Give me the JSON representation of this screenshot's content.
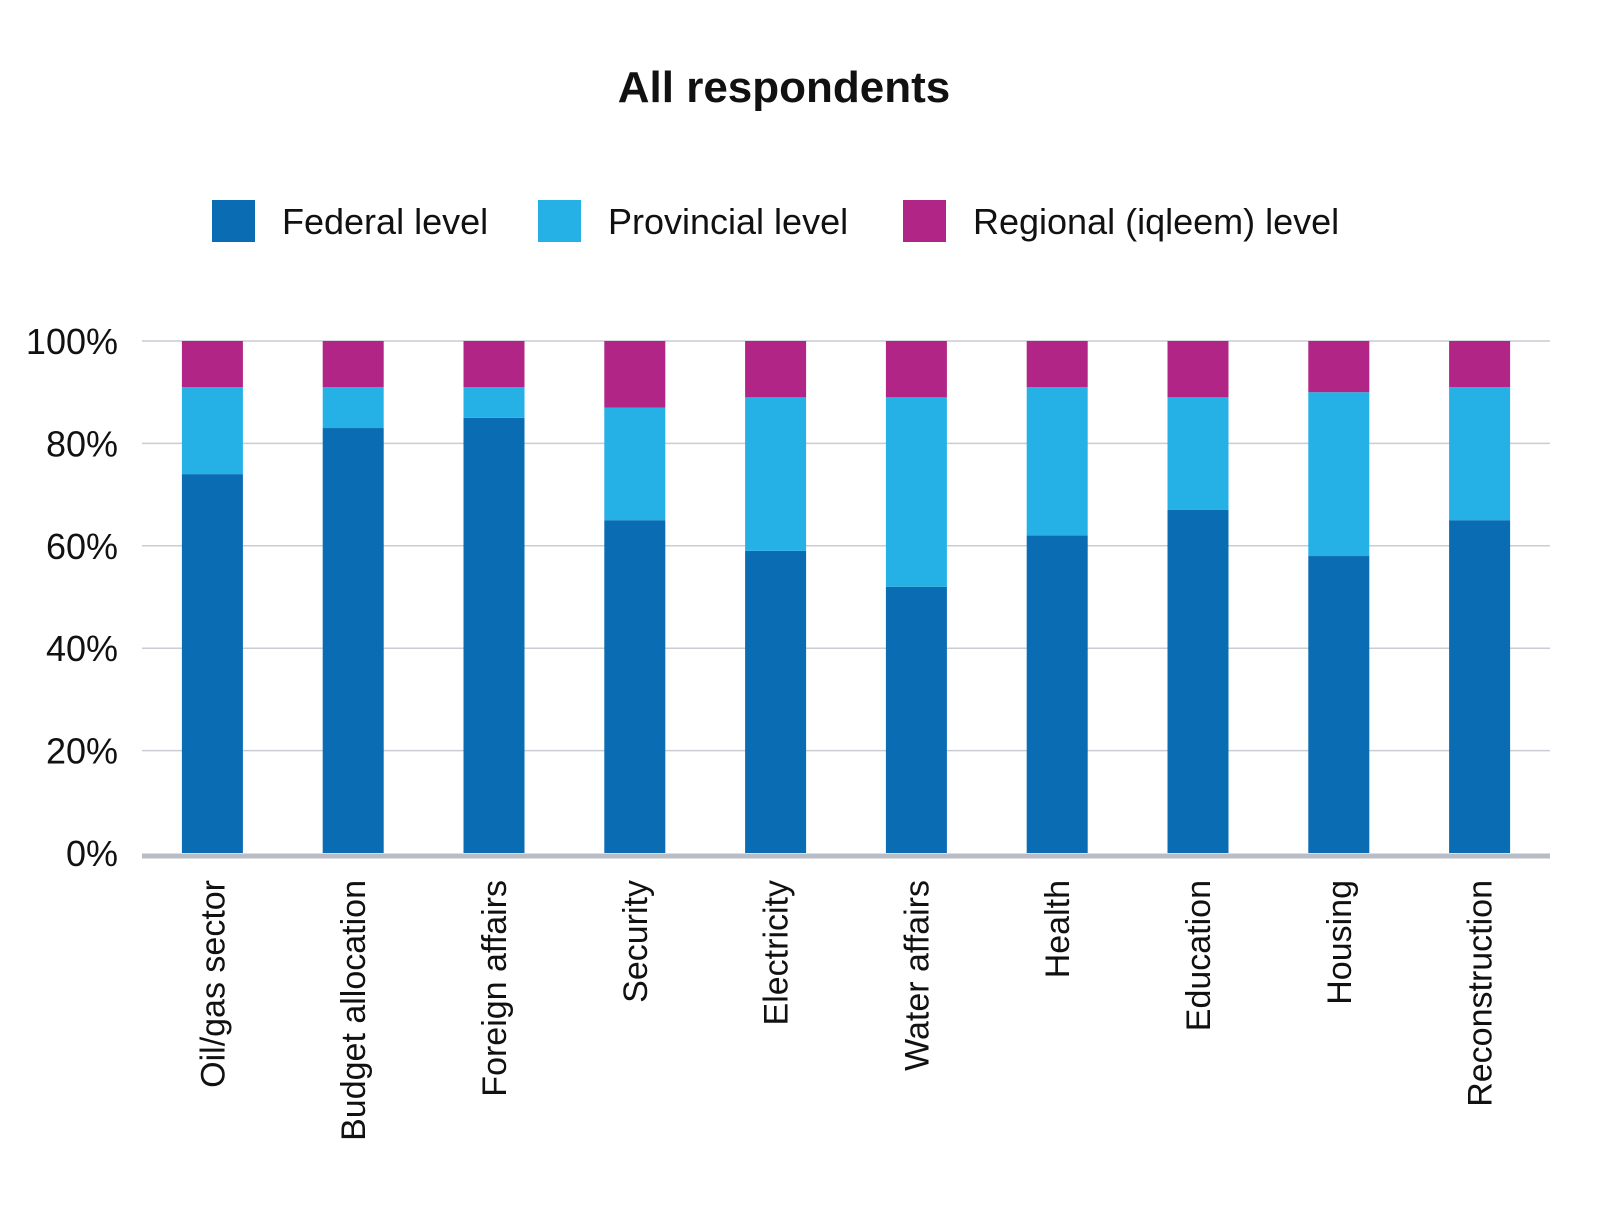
{
  "chart_data": {
    "type": "bar",
    "stacked": true,
    "title": "All respondents",
    "xlabel": "",
    "ylabel": "",
    "ylim": [
      0,
      100
    ],
    "yticks": [
      "0%",
      "20%",
      "40%",
      "60%",
      "80%",
      "100%"
    ],
    "grid": true,
    "legend_placement": "top",
    "categories": [
      "Oil/gas sector",
      "Budget allocation",
      "Foreign affairs",
      "Security",
      "Electricity",
      "Water affairs",
      "Health",
      "Education",
      "Housing",
      "Reconstruction"
    ],
    "series": [
      {
        "name": "Federal level",
        "color": "#0a6cb3",
        "values": [
          74,
          83,
          85,
          65,
          59,
          52,
          62,
          67,
          58,
          65
        ]
      },
      {
        "name": "Provincial level",
        "color": "#25b1e6",
        "values": [
          17,
          8,
          6,
          22,
          30,
          37,
          29,
          22,
          32,
          26
        ]
      },
      {
        "name": "Regional (iqleem) level",
        "color": "#b02585",
        "values": [
          9,
          9,
          9,
          13,
          11,
          11,
          9,
          11,
          10,
          9
        ]
      }
    ]
  }
}
